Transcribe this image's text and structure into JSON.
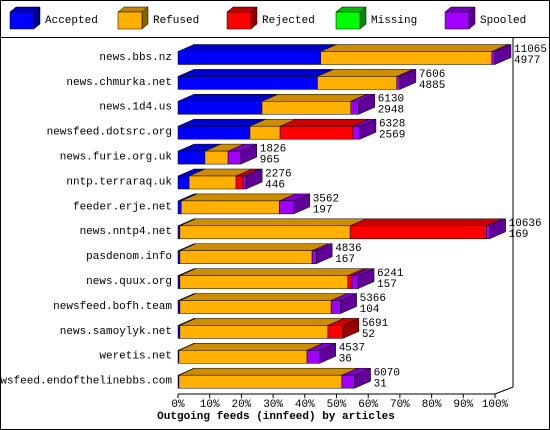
{
  "chart_data": {
    "type": "bar3d",
    "orientation": "horizontal",
    "stacked": true,
    "x_label": "Outgoing feeds (innfeed) by articles",
    "categories": [
      "news.bbs.nz",
      "news.chmurka.net",
      "news.1d4.us",
      "newsfeed.dotsrc.org",
      "news.furie.org.uk",
      "nntp.terraraq.uk",
      "feeder.erje.net",
      "news.nntp4.net",
      "pasdenom.info",
      "news.quux.org",
      "newsfeed.bofh.team",
      "news.samoylyk.net",
      "weretis.net",
      "newsfeed.endofthelinebbs.com"
    ],
    "series": [
      {
        "name": "Accepted",
        "color": "#0000ff",
        "values": [
          45,
          44,
          26.5,
          22.7,
          8.5,
          3.5,
          1,
          0.6,
          0.6,
          0.6,
          0.6,
          0.6,
          0.3,
          0.3
        ]
      },
      {
        "name": "Refused",
        "color": "#ffb000",
        "values": [
          54,
          25,
          28,
          9.5,
          7.3,
          14.8,
          31,
          53.7,
          41.7,
          53,
          47.7,
          46.7,
          40.4,
          51.4
        ]
      },
      {
        "name": "Rejected",
        "color": "#ff0000",
        "values": [
          0,
          0,
          0,
          23,
          0,
          2.2,
          0,
          43,
          0,
          1.3,
          0,
          4.7,
          0,
          0
        ]
      },
      {
        "name": "Missing",
        "color": "#00ff00",
        "values": [
          0,
          0,
          0,
          0,
          0,
          0,
          0,
          0,
          0,
          0,
          0,
          0,
          0,
          0
        ]
      },
      {
        "name": "Spooled",
        "color": "#a000ff",
        "values": [
          1,
          1,
          2.5,
          2.2,
          4,
          1,
          4.5,
          1,
          1.3,
          1.9,
          3,
          0,
          4,
          4
        ]
      }
    ],
    "offered": [
      11065,
      7606,
      6130,
      6328,
      1826,
      2276,
      3562,
      10636,
      4836,
      6241,
      5366,
      5691,
      4537,
      6070
    ],
    "accepted_count": [
      4977,
      4885,
      2948,
      2569,
      965,
      446,
      197,
      169,
      167,
      157,
      104,
      52,
      36,
      31
    ],
    "xlim": [
      0,
      100
    ],
    "xticks": [
      {
        "value": 0,
        "label": "0%"
      },
      {
        "value": 10,
        "label": "10%"
      },
      {
        "value": 20,
        "label": "20%"
      },
      {
        "value": 30,
        "label": "30%"
      },
      {
        "value": 40,
        "label": "40%"
      },
      {
        "value": 50,
        "label": "50%"
      },
      {
        "value": 60,
        "label": "60%"
      },
      {
        "value": 70,
        "label": "70%"
      },
      {
        "value": 80,
        "label": "80%"
      },
      {
        "value": 90,
        "label": "90%"
      },
      {
        "value": 100,
        "label": "100%"
      }
    ]
  }
}
